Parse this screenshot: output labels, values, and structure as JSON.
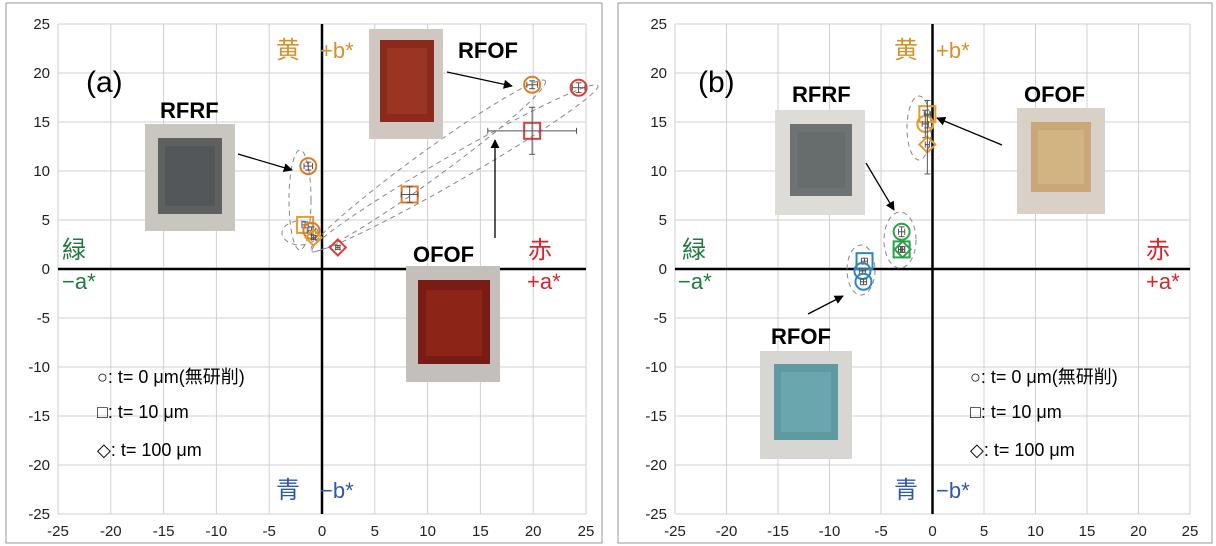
{
  "chart_data": [
    {
      "type": "scatter",
      "panel_label": "(a)",
      "xlim": [
        -25,
        25
      ],
      "ylim": [
        -25,
        25
      ],
      "xticks": [
        "-25",
        "-20",
        "-15",
        "-10",
        "-5",
        "0",
        "5",
        "10",
        "15",
        "20",
        "25"
      ],
      "yticks": [
        "25",
        "20",
        "15",
        "10",
        "5",
        "0",
        "-5",
        "-10",
        "-15",
        "-20",
        "-25"
      ],
      "grid": true,
      "axis_labels": {
        "yellow_kanji": "黄",
        "yellow": "+b*",
        "green_kanji": "緑",
        "green": "−a*",
        "red_kanji": "赤",
        "red": "+a*",
        "blue_kanji": "青",
        "blue": "−b*"
      },
      "photo_labels": [
        "RFRF",
        "RFOF",
        "OFOF"
      ],
      "legend": [
        "○: t= 0 μm(無研削)",
        "□: t= 10 μm",
        "◇: t= 100 μm"
      ],
      "points": [
        {
          "x": -1.3,
          "y": 10.5,
          "marker": "circle",
          "color": "#e07b25",
          "xerr": 0.4,
          "yerr": 0.4
        },
        {
          "x": -1.6,
          "y": 4.5,
          "marker": "square",
          "color": "#e69a2e",
          "xerr": 0.3,
          "yerr": 0.3
        },
        {
          "x": -1.0,
          "y": 3.9,
          "marker": "circle",
          "color": "#e07b25",
          "xerr": 0.4,
          "yerr": 0.4
        },
        {
          "x": -0.8,
          "y": 3.2,
          "marker": "diamond",
          "color": "#e69a2e",
          "xerr": 0.2,
          "yerr": 0.2
        },
        {
          "x": 1.5,
          "y": 2.2,
          "marker": "diamond",
          "color": "#e03a3a",
          "xerr": 0.2,
          "yerr": 0.2
        },
        {
          "x": 8.3,
          "y": 7.6,
          "marker": "square",
          "color": "#e07b25",
          "xerr": 0.8,
          "yerr": 0.8
        },
        {
          "x": 19.9,
          "y": 18.8,
          "marker": "circle",
          "color": "#e07b25",
          "xerr": 0.5,
          "yerr": 0.4
        },
        {
          "x": 24.3,
          "y": 18.5,
          "marker": "circle",
          "color": "#e03a3a",
          "xerr": 0.6,
          "yerr": 0.5
        },
        {
          "x": 19.9,
          "y": 14.1,
          "marker": "square",
          "color": "#e03a3a",
          "xerr": 4.2,
          "yerr": 2.4
        }
      ]
    },
    {
      "type": "scatter",
      "panel_label": "(b)",
      "xlim": [
        -25,
        25
      ],
      "ylim": [
        -25,
        25
      ],
      "xticks": [
        "-25",
        "-20",
        "-15",
        "-10",
        "-5",
        "0",
        "5",
        "10",
        "15",
        "20",
        "25"
      ],
      "yticks": [
        "25",
        "20",
        "15",
        "10",
        "5",
        "0",
        "-5",
        "-10",
        "-15",
        "-20",
        "-25"
      ],
      "grid": true,
      "axis_labels": {
        "yellow_kanji": "黄",
        "yellow": "+b*",
        "green_kanji": "緑",
        "green": "−a*",
        "red_kanji": "赤",
        "red": "+a*",
        "blue_kanji": "青",
        "blue": "−b*"
      },
      "photo_labels": [
        "RFRF",
        "OFOF",
        "RFOF"
      ],
      "legend": [
        "○: t= 0 μm(無研削)",
        "□: t= 10 μm",
        "◇: t= 100 μm"
      ],
      "points": [
        {
          "x": -0.5,
          "y": 15.8,
          "marker": "square",
          "color": "#e69a2e",
          "xerr": 0.3,
          "yerr": 1.4
        },
        {
          "x": -0.7,
          "y": 14.8,
          "marker": "circle",
          "color": "#e69a2e",
          "xerr": 0.3,
          "yerr": 1.4
        },
        {
          "x": -0.5,
          "y": 12.7,
          "marker": "diamond",
          "color": "#e69a2e",
          "xerr": 0.2,
          "yerr": 3.0
        },
        {
          "x": -3.0,
          "y": 3.8,
          "marker": "circle",
          "color": "#2e9e4f",
          "xerr": 0.3,
          "yerr": 0.5
        },
        {
          "x": -3.0,
          "y": 2.0,
          "marker": "square",
          "color": "#2e9e4f",
          "xerr": 0.3,
          "yerr": 0.3
        },
        {
          "x": -2.9,
          "y": 2.0,
          "marker": "diamond",
          "color": "#2e9e4f",
          "xerr": 0.2,
          "yerr": 0.3
        },
        {
          "x": -6.6,
          "y": 0.8,
          "marker": "square",
          "color": "#2e86c1",
          "xerr": 0.3,
          "yerr": 0.3
        },
        {
          "x": -6.8,
          "y": -0.2,
          "marker": "circle",
          "color": "#2e86c1",
          "xerr": 0.3,
          "yerr": 0.3
        },
        {
          "x": -6.7,
          "y": -1.3,
          "marker": "circle",
          "color": "#2e86c1",
          "xerr": 0.3,
          "yerr": 0.3
        }
      ]
    }
  ]
}
